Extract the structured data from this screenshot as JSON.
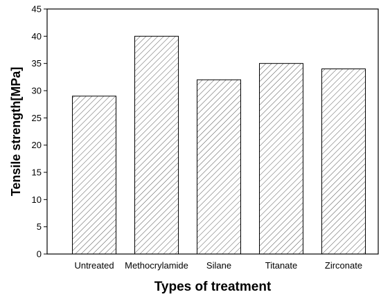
{
  "chart_data": {
    "type": "bar",
    "categories": [
      "Untreated",
      "Methocrylamide",
      "Silane",
      "Titanate",
      "Zirconate"
    ],
    "values": [
      29,
      40,
      32,
      35,
      34
    ],
    "xlabel": "Types of treatment",
    "ylabel": "Tensile strength[MPa]",
    "ylim": [
      0,
      45
    ],
    "yticks": [
      0,
      5,
      10,
      15,
      20,
      25,
      30,
      35,
      40,
      45
    ],
    "grid": false,
    "bar_fill": "hatched",
    "colors": {
      "bar_stroke": "#000000",
      "hatch": "#555555",
      "background": "#ffffff"
    }
  }
}
